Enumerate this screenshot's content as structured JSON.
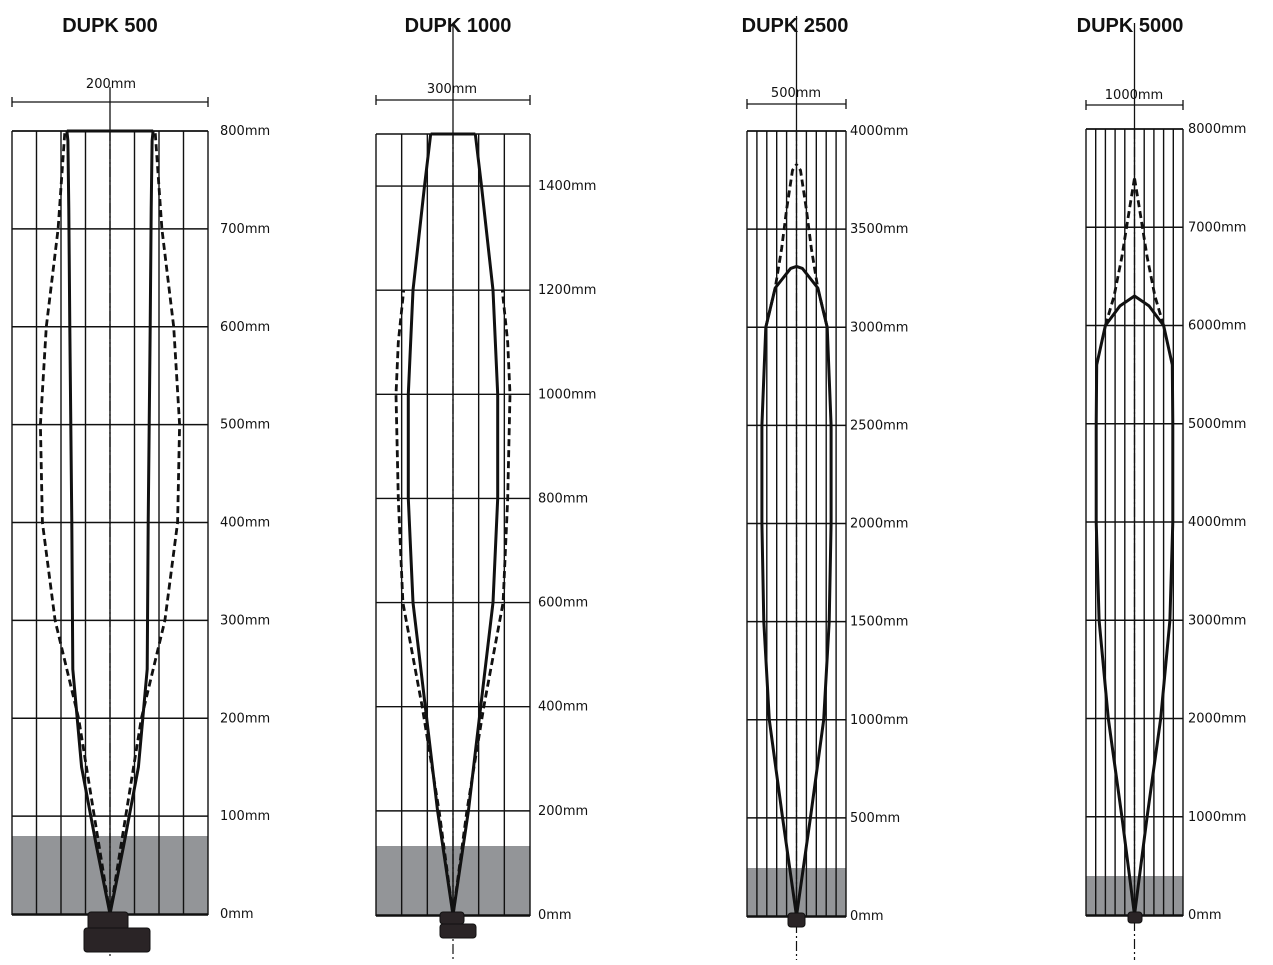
{
  "diagrams": [
    {
      "title": "DUPK 500",
      "width_label": "200mm",
      "y_labels": [
        "0mm",
        "100mm",
        "200mm",
        "300mm",
        "400mm",
        "500mm",
        "600mm",
        "700mm",
        "800mm"
      ],
      "max": 800,
      "solid_profile": [
        [
          0,
          0
        ],
        [
          70,
          0.14
        ],
        [
          150,
          0.29
        ],
        [
          250,
          0.38
        ],
        [
          400,
          0.39
        ],
        [
          600,
          0.41
        ],
        [
          720,
          0.42
        ],
        [
          790,
          0.43
        ],
        [
          800,
          0.44
        ]
      ],
      "dashed_profile": [
        [
          0,
          0
        ],
        [
          100,
          0.16
        ],
        [
          200,
          0.32
        ],
        [
          300,
          0.56
        ],
        [
          400,
          0.69
        ],
        [
          500,
          0.71
        ],
        [
          600,
          0.65
        ],
        [
          700,
          0.53
        ],
        [
          800,
          0.46
        ]
      ]
    },
    {
      "title": "DUPK 1000",
      "width_label": "300mm",
      "y_labels": [
        "0mm",
        "200mm",
        "400mm",
        "600mm",
        "800mm",
        "1000mm",
        "1200mm",
        "1400mm"
      ],
      "max": 1500,
      "solid_profile": [
        [
          0,
          0
        ],
        [
          200,
          0.2
        ],
        [
          400,
          0.36
        ],
        [
          600,
          0.52
        ],
        [
          800,
          0.58
        ],
        [
          1000,
          0.58
        ],
        [
          1200,
          0.52
        ],
        [
          1400,
          0.37
        ],
        [
          1500,
          0.29
        ]
      ],
      "dashed_profile": [
        [
          0,
          0
        ],
        [
          200,
          0.18
        ],
        [
          400,
          0.4
        ],
        [
          600,
          0.65
        ],
        [
          800,
          0.71
        ],
        [
          1000,
          0.74
        ],
        [
          1100,
          0.71
        ],
        [
          1200,
          0.64
        ]
      ]
    },
    {
      "title": "DUPK 2500",
      "width_label": "500mm",
      "y_labels": [
        "0mm",
        "500mm",
        "1000mm",
        "1500mm",
        "2000mm",
        "2500mm",
        "3000mm",
        "3500mm",
        "4000mm"
      ],
      "max": 4000,
      "solid_profile": [
        [
          0,
          0
        ],
        [
          500,
          0.28
        ],
        [
          1000,
          0.55
        ],
        [
          1500,
          0.66
        ],
        [
          2000,
          0.7
        ],
        [
          2500,
          0.7
        ],
        [
          3000,
          0.62
        ],
        [
          3200,
          0.43
        ],
        [
          3300,
          0.12
        ],
        [
          3310,
          0
        ]
      ],
      "dashed_profile": [
        [
          3000,
          0.62
        ],
        [
          3200,
          0.43
        ],
        [
          3400,
          0.3
        ],
        [
          3600,
          0.2
        ],
        [
          3800,
          0.08
        ],
        [
          3830,
          0
        ]
      ]
    },
    {
      "title": "DUPK 5000",
      "width_label": "1000mm",
      "y_labels": [
        "0mm",
        "1000mm",
        "2000mm",
        "3000mm",
        "4000mm",
        "5000mm",
        "6000mm",
        "7000mm",
        "8000mm"
      ],
      "max": 8000,
      "solid_profile": [
        [
          0,
          0
        ],
        [
          1000,
          0.26
        ],
        [
          2000,
          0.54
        ],
        [
          3000,
          0.73
        ],
        [
          4000,
          0.79
        ],
        [
          5000,
          0.79
        ],
        [
          5600,
          0.78
        ],
        [
          6000,
          0.6
        ],
        [
          6200,
          0.3
        ],
        [
          6300,
          0
        ]
      ],
      "dashed_profile": [
        [
          6000,
          0.6
        ],
        [
          6300,
          0.42
        ],
        [
          6700,
          0.26
        ],
        [
          7200,
          0.1
        ],
        [
          7500,
          0
        ]
      ]
    }
  ]
}
